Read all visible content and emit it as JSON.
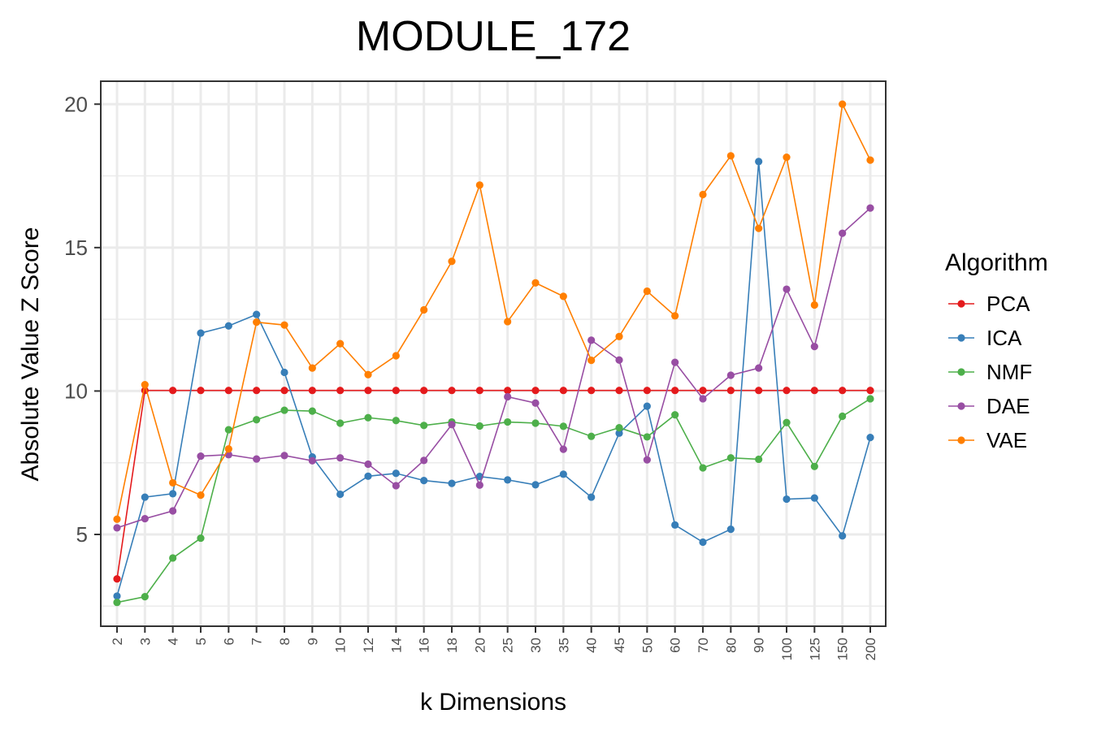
{
  "chart_data": {
    "type": "line",
    "title": "MODULE_172",
    "xlabel": "k Dimensions",
    "ylabel": "Absolute Value Z Score",
    "ylim": [
      1.8,
      20.8
    ],
    "yticks": [
      5,
      10,
      15,
      20
    ],
    "grid": true,
    "legend_title": "Algorithm",
    "legend_position": "right",
    "categories": [
      "2",
      "3",
      "4",
      "5",
      "6",
      "7",
      "8",
      "9",
      "10",
      "12",
      "14",
      "16",
      "18",
      "20",
      "25",
      "30",
      "35",
      "40",
      "45",
      "50",
      "60",
      "70",
      "80",
      "90",
      "100",
      "125",
      "150",
      "200"
    ],
    "series": [
      {
        "name": "PCA",
        "color": "#E41A1C",
        "values": [
          3.45,
          10.02,
          10.02,
          10.02,
          10.02,
          10.02,
          10.02,
          10.02,
          10.02,
          10.02,
          10.02,
          10.02,
          10.02,
          10.02,
          10.02,
          10.02,
          10.02,
          10.02,
          10.02,
          10.02,
          10.02,
          10.02,
          10.02,
          10.02,
          10.02,
          10.02,
          10.02,
          10.02
        ]
      },
      {
        "name": "ICA",
        "color": "#377EB8",
        "values": [
          2.85,
          6.3,
          6.42,
          12.02,
          12.27,
          12.67,
          10.65,
          7.7,
          6.4,
          7.03,
          7.13,
          6.88,
          6.78,
          7.02,
          6.9,
          6.73,
          7.1,
          6.3,
          8.53,
          9.47,
          5.33,
          4.73,
          5.18,
          18.0,
          6.23,
          6.27,
          4.95,
          8.38
        ]
      },
      {
        "name": "NMF",
        "color": "#4DAF4A",
        "values": [
          2.63,
          2.83,
          4.18,
          4.87,
          8.65,
          9.0,
          9.33,
          9.3,
          8.88,
          9.07,
          8.97,
          8.8,
          8.92,
          8.78,
          8.92,
          8.88,
          8.77,
          8.42,
          8.72,
          8.4,
          9.17,
          7.32,
          7.67,
          7.62,
          8.9,
          7.37,
          9.12,
          9.73
        ]
      },
      {
        "name": "DAE",
        "color": "#984EA3",
        "values": [
          5.23,
          5.55,
          5.82,
          7.73,
          7.78,
          7.63,
          7.75,
          7.57,
          7.67,
          7.45,
          6.7,
          7.58,
          8.83,
          6.72,
          9.8,
          9.58,
          7.97,
          11.77,
          11.08,
          7.6,
          11.0,
          9.73,
          10.55,
          10.8,
          13.55,
          11.55,
          15.5,
          16.38
        ]
      },
      {
        "name": "VAE",
        "color": "#FF7F00",
        "values": [
          5.53,
          10.22,
          6.8,
          6.37,
          7.98,
          12.4,
          12.3,
          10.8,
          11.65,
          10.57,
          11.23,
          12.83,
          14.52,
          17.18,
          12.42,
          13.77,
          13.3,
          11.07,
          11.9,
          13.48,
          12.62,
          16.85,
          18.2,
          15.67,
          18.15,
          13.0,
          20.0,
          18.05
        ]
      }
    ]
  }
}
